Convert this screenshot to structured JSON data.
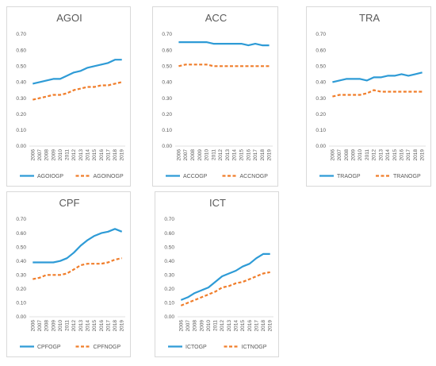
{
  "chart_data": [
    {
      "type": "line",
      "title": "AGOI",
      "x": [
        "2006",
        "2007",
        "2008",
        "2009",
        "2010",
        "2011",
        "2012",
        "2013",
        "2014",
        "2015",
        "2016",
        "2017",
        "2018",
        "2019"
      ],
      "ylim": [
        0,
        0.7
      ],
      "yticks": [
        "0.00",
        "0.10",
        "0.20",
        "0.30",
        "0.40",
        "0.50",
        "0.60",
        "0.70"
      ],
      "legend": "bottom",
      "grid": false,
      "series": [
        {
          "name": "AGOIOGP",
          "color": "#2e9bd6",
          "style": "solid",
          "values": [
            0.39,
            0.4,
            0.41,
            0.42,
            0.42,
            0.44,
            0.46,
            0.47,
            0.49,
            0.5,
            0.51,
            0.52,
            0.54,
            0.54
          ]
        },
        {
          "name": "AGOINOGP",
          "color": "#f07d2a",
          "style": "dashed",
          "values": [
            0.29,
            0.3,
            0.31,
            0.32,
            0.32,
            0.33,
            0.35,
            0.36,
            0.37,
            0.37,
            0.38,
            0.38,
            0.39,
            0.4
          ]
        }
      ]
    },
    {
      "type": "line",
      "title": "ACC",
      "x": [
        "2006",
        "2007",
        "2008",
        "2009",
        "2010",
        "2011",
        "2012",
        "2013",
        "2014",
        "2015",
        "2016",
        "2017",
        "2018",
        "2019"
      ],
      "ylim": [
        0,
        0.7
      ],
      "yticks": [
        "0.00",
        "0.10",
        "0.20",
        "0.30",
        "0.40",
        "0.50",
        "0.60",
        "0.70"
      ],
      "legend": "bottom",
      "grid": false,
      "series": [
        {
          "name": "ACCOGP",
          "color": "#2e9bd6",
          "style": "solid",
          "values": [
            0.65,
            0.65,
            0.65,
            0.65,
            0.65,
            0.64,
            0.64,
            0.64,
            0.64,
            0.64,
            0.63,
            0.64,
            0.63,
            0.63
          ]
        },
        {
          "name": "ACCNOGP",
          "color": "#f07d2a",
          "style": "dashed",
          "values": [
            0.5,
            0.51,
            0.51,
            0.51,
            0.51,
            0.5,
            0.5,
            0.5,
            0.5,
            0.5,
            0.5,
            0.5,
            0.5,
            0.5
          ]
        }
      ]
    },
    {
      "type": "line",
      "title": "TRA",
      "x": [
        "2006",
        "2007",
        "2008",
        "2009",
        "2010",
        "2011",
        "2012",
        "2013",
        "2014",
        "2015",
        "2016",
        "2017",
        "2018",
        "2019"
      ],
      "ylim": [
        0,
        0.7
      ],
      "yticks": [
        "0.00",
        "0.10",
        "0.20",
        "0.30",
        "0.40",
        "0.50",
        "0.60",
        "0.70"
      ],
      "legend": "bottom",
      "grid": false,
      "series": [
        {
          "name": "TRAOGP",
          "color": "#2e9bd6",
          "style": "solid",
          "values": [
            0.4,
            0.41,
            0.42,
            0.42,
            0.42,
            0.41,
            0.43,
            0.43,
            0.44,
            0.44,
            0.45,
            0.44,
            0.45,
            0.46
          ]
        },
        {
          "name": "TRANOGP",
          "color": "#f07d2a",
          "style": "dashed",
          "values": [
            0.31,
            0.32,
            0.32,
            0.32,
            0.32,
            0.33,
            0.35,
            0.34,
            0.34,
            0.34,
            0.34,
            0.34,
            0.34,
            0.34
          ]
        }
      ]
    },
    {
      "type": "line",
      "title": "CPF",
      "x": [
        "2006",
        "2007",
        "2008",
        "2009",
        "2010",
        "2011",
        "2012",
        "2013",
        "2014",
        "2015",
        "2016",
        "2017",
        "2018",
        "2019"
      ],
      "ylim": [
        0,
        0.7
      ],
      "yticks": [
        "0.00",
        "0.10",
        "0.20",
        "0.30",
        "0.40",
        "0.50",
        "0.60",
        "0.70"
      ],
      "legend": "bottom",
      "grid": false,
      "series": [
        {
          "name": "CPFOGP",
          "color": "#2e9bd6",
          "style": "solid",
          "values": [
            0.39,
            0.39,
            0.39,
            0.39,
            0.4,
            0.42,
            0.46,
            0.51,
            0.55,
            0.58,
            0.6,
            0.61,
            0.63,
            0.61
          ]
        },
        {
          "name": "CPFNOGP",
          "color": "#f07d2a",
          "style": "dashed",
          "values": [
            0.27,
            0.28,
            0.3,
            0.3,
            0.3,
            0.31,
            0.34,
            0.37,
            0.38,
            0.38,
            0.38,
            0.39,
            0.41,
            0.42
          ]
        }
      ]
    },
    {
      "type": "line",
      "title": "ICT",
      "x": [
        "2006",
        "2007",
        "2008",
        "2009",
        "2010",
        "2011",
        "2012",
        "2013",
        "2014",
        "2015",
        "2016",
        "2017",
        "2018",
        "2019"
      ],
      "ylim": [
        0,
        0.7
      ],
      "yticks": [
        "0.00",
        "0.10",
        "0.20",
        "0.30",
        "0.40",
        "0.50",
        "0.60",
        "0.70"
      ],
      "legend": "bottom",
      "grid": false,
      "series": [
        {
          "name": "ICTOGP",
          "color": "#2e9bd6",
          "style": "solid",
          "values": [
            0.12,
            0.14,
            0.17,
            0.19,
            0.21,
            0.25,
            0.29,
            0.31,
            0.33,
            0.36,
            0.38,
            0.42,
            0.45,
            0.45
          ]
        },
        {
          "name": "ICTNOGP",
          "color": "#f07d2a",
          "style": "dashed",
          "values": [
            0.08,
            0.1,
            0.12,
            0.14,
            0.16,
            0.18,
            0.21,
            0.22,
            0.24,
            0.25,
            0.27,
            0.29,
            0.31,
            0.32
          ]
        }
      ]
    }
  ]
}
